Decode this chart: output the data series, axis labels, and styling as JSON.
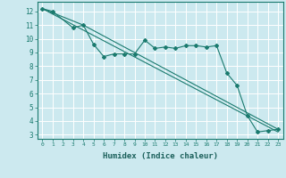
{
  "xlabel": "Humidex (Indice chaleur)",
  "ylabel": "",
  "background_color": "#cce9ef",
  "grid_color": "#ffffff",
  "line_color": "#1a7a6e",
  "xlim": [
    -0.5,
    23.5
  ],
  "ylim": [
    2.7,
    12.7
  ],
  "xticks": [
    0,
    1,
    2,
    3,
    4,
    5,
    6,
    7,
    8,
    9,
    10,
    11,
    12,
    13,
    14,
    15,
    16,
    17,
    18,
    19,
    20,
    21,
    22,
    23
  ],
  "yticks": [
    3,
    4,
    5,
    6,
    7,
    8,
    9,
    10,
    11,
    12
  ],
  "series1_x": [
    0,
    1,
    3,
    4,
    5,
    6,
    7,
    8,
    9,
    10,
    11,
    12,
    13,
    14,
    15,
    16,
    17,
    18,
    19,
    20,
    21,
    22,
    23
  ],
  "series1_y": [
    12.2,
    12.0,
    10.8,
    11.0,
    9.6,
    8.7,
    8.9,
    8.9,
    8.9,
    9.9,
    9.3,
    9.4,
    9.3,
    9.5,
    9.5,
    9.4,
    9.5,
    7.5,
    6.6,
    4.4,
    3.2,
    3.3,
    3.4
  ],
  "series2_x": [
    0,
    23
  ],
  "series2_y": [
    12.2,
    3.2
  ],
  "series3_x": [
    0,
    4,
    23
  ],
  "series3_y": [
    12.2,
    11.0,
    3.4
  ]
}
